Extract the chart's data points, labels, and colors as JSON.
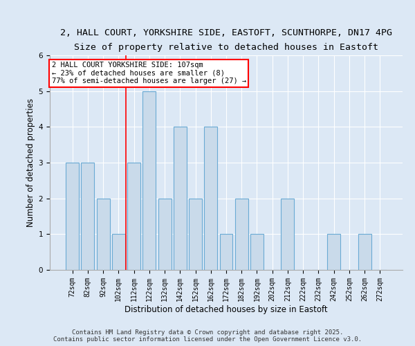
{
  "title1": "2, HALL COURT, YORKSHIRE SIDE, EASTOFT, SCUNTHORPE, DN17 4PG",
  "title2": "Size of property relative to detached houses in Eastoft",
  "xlabel": "Distribution of detached houses by size in Eastoft",
  "ylabel": "Number of detached properties",
  "categories": [
    "72sqm",
    "82sqm",
    "92sqm",
    "102sqm",
    "112sqm",
    "122sqm",
    "132sqm",
    "142sqm",
    "152sqm",
    "162sqm",
    "172sqm",
    "182sqm",
    "192sqm",
    "202sqm",
    "212sqm",
    "222sqm",
    "232sqm",
    "242sqm",
    "252sqm",
    "262sqm",
    "272sqm"
  ],
  "values": [
    3,
    3,
    2,
    1,
    3,
    5,
    2,
    4,
    2,
    4,
    1,
    2,
    1,
    0,
    2,
    0,
    0,
    1,
    0,
    1,
    0
  ],
  "bar_color": "#c9daea",
  "bar_edge_color": "#6aaad4",
  "annotation_text": "2 HALL COURT YORKSHIRE SIDE: 107sqm\n← 23% of detached houses are smaller (8)\n77% of semi-detached houses are larger (27) →",
  "annotation_box_color": "white",
  "annotation_box_edge_color": "red",
  "vline_color": "red",
  "background_color": "#dce8f5",
  "footer_text": "Contains HM Land Registry data © Crown copyright and database right 2025.\nContains public sector information licensed under the Open Government Licence v3.0.",
  "ylim": [
    0,
    6
  ],
  "grid_color": "white",
  "title1_fontsize": 9.5,
  "title2_fontsize": 9,
  "axis_label_fontsize": 8.5,
  "tick_fontsize": 7,
  "footer_fontsize": 6.5,
  "annotation_fontsize": 7.5,
  "vline_index": 3.5
}
